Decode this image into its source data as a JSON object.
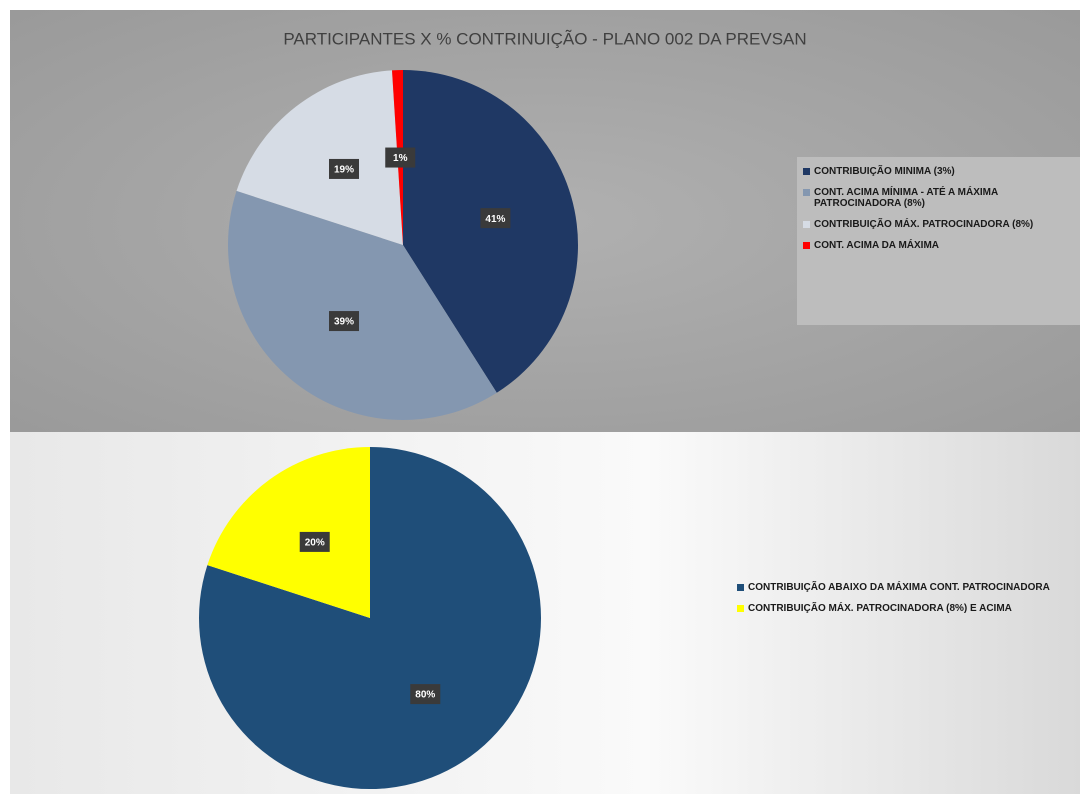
{
  "chart_data": [
    {
      "type": "pie",
      "title": "PARTICIPANTES X  % CONTRINUIÇÃO - PLANO 002  DA PREVSAN",
      "categories": [
        "CONTRIBUIÇÃO MINIMA (3%)",
        "CONT.  ACIMA MÍNIMA -  ATÉ A MÁXIMA PATROCINADORA (8%)",
        "CONTRIBUIÇÃO MÁX. PATROCINADORA (8%)",
        "CONT. ACIMA DA MÁXIMA"
      ],
      "values": [
        41,
        39,
        19,
        1
      ],
      "value_labels": [
        "41%",
        "39%",
        "19%",
        "1%"
      ],
      "colors": [
        "#1f3864",
        "#8497b0",
        "#d6dce5",
        "#ff0000"
      ],
      "legend": "right"
    },
    {
      "type": "pie",
      "categories": [
        "CONTRIBUIÇÃO ABAIXO DA MÁXIMA CONT. PATROCINADORA",
        "CONTRIBUIÇÃO MÁX. PATROCINADORA (8%) E ACIMA"
      ],
      "values": [
        80,
        20
      ],
      "value_labels": [
        "80%",
        "20%"
      ],
      "colors": [
        "#1f4e79",
        "#ffff00"
      ],
      "legend": "right"
    }
  ]
}
